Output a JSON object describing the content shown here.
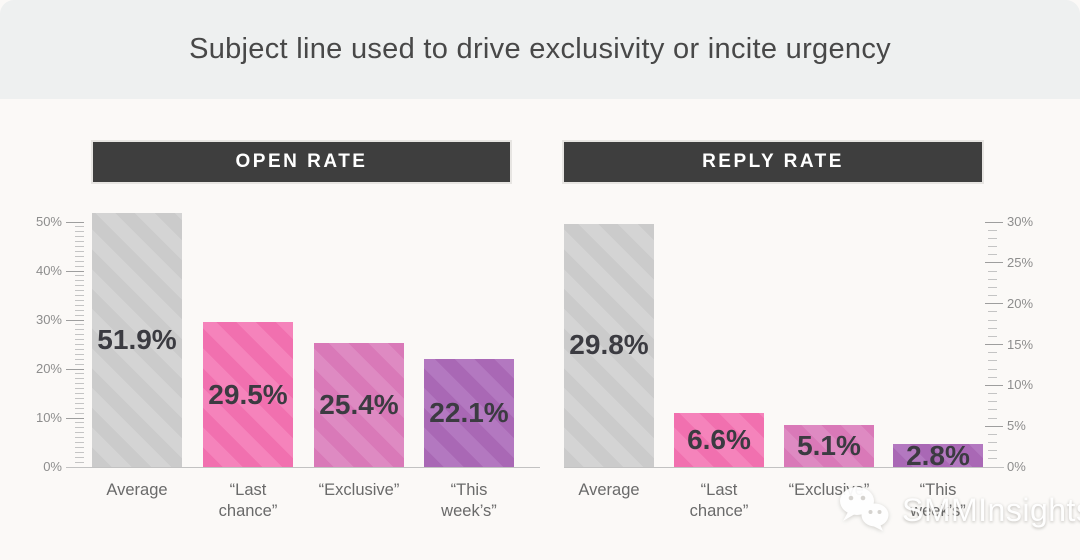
{
  "title": "Subject line used to drive exclusivity or incite urgency",
  "watermark": {
    "text": "SMMInsights",
    "icon": "wechat-icon"
  },
  "colors": {
    "title_band_bg": "#eef0f0",
    "body_bg": "#fbf9f7",
    "panel_header_bg": "#3e3e3e",
    "value_label_text": "#3b3b41",
    "axis_text": "#8d8d8d",
    "category_text": "#6a6a6a",
    "bar_gray": "#cbcbcb",
    "bar_gray_stripe": "#d4d4d4",
    "bar_pink": "#f170af",
    "bar_pink_stripe": "#f583bb",
    "bar_orchid": "#d979b8",
    "bar_orchid_stripe": "#de8ac2",
    "bar_purple": "#a968b5",
    "bar_purple_stripe": "#b378c0"
  },
  "chart_data": [
    {
      "type": "bar",
      "title": "OPEN RATE",
      "categories": [
        "Average",
        "“Last\nchance”",
        "“Exclusive”",
        "“This\nweek’s”"
      ],
      "values": [
        51.9,
        29.5,
        25.4,
        22.1
      ],
      "value_labels": [
        "51.9%",
        "29.5%",
        "25.4%",
        "22.1%"
      ],
      "ylim": [
        0,
        50
      ],
      "ytick_major_step": 10,
      "ytick_minor_step": 1,
      "ytick_labels": [
        "0%",
        "10%",
        "20%",
        "30%",
        "40%",
        "50%"
      ],
      "axis_side": "left",
      "grid": false,
      "legend": "none",
      "bar_color_names": [
        "gray",
        "pink",
        "orchid",
        "purple"
      ]
    },
    {
      "type": "bar",
      "title": "REPLY RATE",
      "categories": [
        "Average",
        "“Last\nchance”",
        "“Exclusive”",
        "“This\nweek’s”"
      ],
      "values": [
        29.8,
        6.6,
        5.1,
        2.8
      ],
      "value_labels": [
        "29.8%",
        "6.6%",
        "5.1%",
        "2.8%"
      ],
      "ylim": [
        0,
        30
      ],
      "ytick_major_step": 5,
      "ytick_minor_step": 1,
      "ytick_labels": [
        "0%",
        "5%",
        "10%",
        "15%",
        "20%",
        "25%",
        "30%"
      ],
      "axis_side": "right",
      "grid": false,
      "legend": "none",
      "bar_color_names": [
        "gray",
        "pink",
        "orchid",
        "purple"
      ]
    }
  ]
}
